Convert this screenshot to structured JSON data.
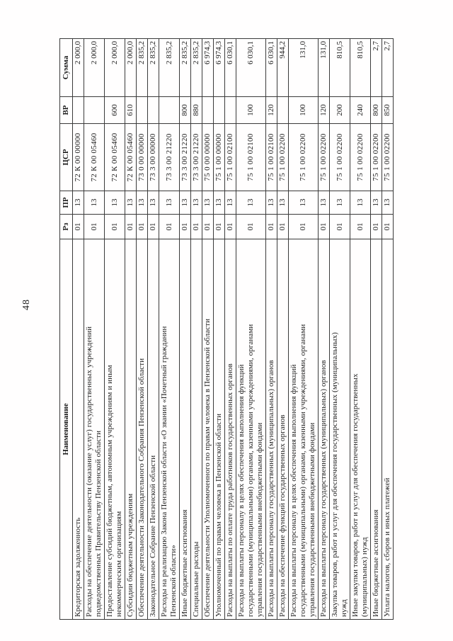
{
  "page": {
    "number": "48"
  },
  "table": {
    "headers": {
      "name": "Наименование",
      "rz": "Рз",
      "pr": "ПР",
      "csr": "ЦСР",
      "vr": "ВР",
      "sum": "Сумма"
    },
    "rows": [
      {
        "name": "Кредиторская задолженность",
        "rz": "01",
        "pr": "13",
        "csr": "72 К 00 00000",
        "vr": "",
        "sum": "2 000,0"
      },
      {
        "name": "Расходы на обеспечение деятельности (оказание услуг) государственных учреждений\nподведомственных Правительству Пензенской области",
        "rz": "01",
        "pr": "13",
        "csr": "72 К 00 05460",
        "vr": "",
        "sum": "2 000,0"
      },
      {
        "name": "Предоставление субсидий бюджетным, автономным учреждениям и иным\nнекоммерческим организациям",
        "rz": "01",
        "pr": "13",
        "csr": "72 К 00 05460",
        "vr": "600",
        "sum": "2 000,0"
      },
      {
        "name": "Субсидии бюджетным учреждениям",
        "rz": "01",
        "pr": "13",
        "csr": "72 К 00 05460",
        "vr": "610",
        "sum": "2 000,0"
      },
      {
        "name": "Обеспечение деятельности Законодательного Собрания Пензенской области",
        "rz": "01",
        "pr": "13",
        "csr": "73 0 00 00000",
        "vr": "",
        "sum": "2 835,2"
      },
      {
        "name": "Законодательное Собрание Пензенской области",
        "rz": "01",
        "pr": "13",
        "csr": "73 3 00 00000",
        "vr": "",
        "sum": "2 835,2"
      },
      {
        "name": "Расходы на реализацию Закона Пензенской области «О звании «Почетный гражданин\nПензенской области»",
        "rz": "01",
        "pr": "13",
        "csr": "73 3 00 21220",
        "vr": "",
        "sum": "2 835,2"
      },
      {
        "name": "Иные бюджетные ассигнования",
        "rz": "01",
        "pr": "13",
        "csr": "73 3 00 21220",
        "vr": "800",
        "sum": "2 835,2"
      },
      {
        "name": "Специальные расходы",
        "rz": "01",
        "pr": "13",
        "csr": "73 3 00 21220",
        "vr": "880",
        "sum": "2 835,2"
      },
      {
        "name": "Обеспечение деятельности Уполномоченного по правам человека в Пензенской области",
        "rz": "01",
        "pr": "13",
        "csr": "75 0 00 00000",
        "vr": "",
        "sum": "6 974,3"
      },
      {
        "name": "Уполномоченный по правам человека в Пензенской области",
        "rz": "01",
        "pr": "13",
        "csr": "75 1 00 00000",
        "vr": "",
        "sum": "6 974,3"
      },
      {
        "name": "Расходы на выплаты по оплате труда работников государственных органов",
        "rz": "01",
        "pr": "13",
        "csr": "75 1 00 02100",
        "vr": "",
        "sum": "6 030,1"
      },
      {
        "name": "Расходы на выплаты персоналу в целях обеспечения выполнения функций\nгосударственными (муниципальными) органами, казенными учреждениями, органами\nуправления государственными внебюджетными фондами",
        "rz": "01",
        "pr": "13",
        "csr": "75 1 00 02100",
        "vr": "100",
        "sum": "6 030,1"
      },
      {
        "name": "Расходы на выплаты персоналу государственных (муниципальных) органов",
        "rz": "01",
        "pr": "13",
        "csr": "75 1 00 02100",
        "vr": "120",
        "sum": "6 030,1"
      },
      {
        "name": "Расходы на обеспечение функций государственных органов",
        "rz": "01",
        "pr": "13",
        "csr": "75 1 00 02200",
        "vr": "",
        "sum": "944,2"
      },
      {
        "name": "Расходы на выплаты персоналу в целях обеспечения выполнения функций\nгосударственными (муниципальными) органами, казенными учреждениями, органами\nуправления государственными внебюджетными фондами",
        "rz": "01",
        "pr": "13",
        "csr": "75 1 00 02200",
        "vr": "100",
        "sum": "131,0"
      },
      {
        "name": "Расходы на выплаты персоналу государственных (муниципальных) органов",
        "rz": "01",
        "pr": "13",
        "csr": "75 1 00 02200",
        "vr": "120",
        "sum": "131,0"
      },
      {
        "name": "Закупка товаров, работ и услуг для обеспечения государственных (муниципальных)\nнужд",
        "rz": "01",
        "pr": "13",
        "csr": "75 1 00 02200",
        "vr": "200",
        "sum": "810,5"
      },
      {
        "name": "Иные закупки товаров, работ и услуг для обеспечения государственных\n(муниципальных) нужд",
        "rz": "01",
        "pr": "13",
        "csr": "75 1 00 02200",
        "vr": "240",
        "sum": "810,5"
      },
      {
        "name": "Иные бюджетные ассигнования",
        "rz": "01",
        "pr": "13",
        "csr": "75 1 00 02200",
        "vr": "800",
        "sum": "2,7"
      },
      {
        "name": "Уплата налогов, сборов и иных платежей",
        "rz": "01",
        "pr": "13",
        "csr": "75 1 00 02200",
        "vr": "850",
        "sum": "2,7"
      }
    ]
  }
}
